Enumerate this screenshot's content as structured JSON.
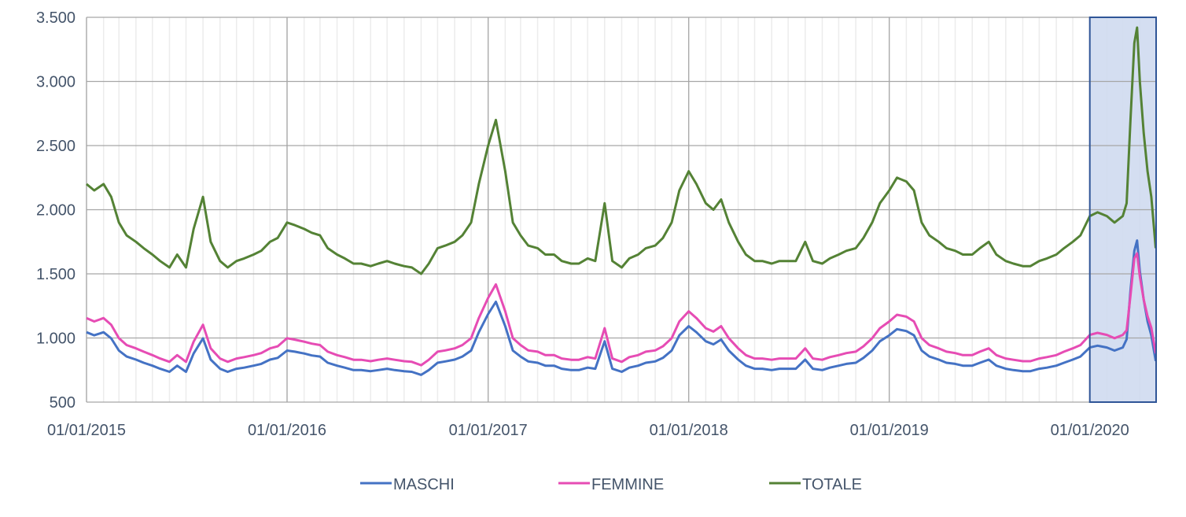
{
  "chart_data": {
    "type": "line",
    "title": "",
    "xlabel": "",
    "ylabel": "",
    "ylim": [
      500,
      3500
    ],
    "y_ticks": [
      "500",
      "1.000",
      "1.500",
      "2.000",
      "2.500",
      "3.000",
      "3.500"
    ],
    "y_tick_values": [
      500,
      1000,
      1500,
      2000,
      2500,
      3000,
      3500
    ],
    "xlim": [
      "2015-01-01",
      "2020-04-30"
    ],
    "x_ticks": [
      "01/01/2015",
      "01/01/2016",
      "01/01/2017",
      "01/01/2018",
      "01/01/2019",
      "01/01/2020"
    ],
    "x_tick_dates": [
      "2015-01-01",
      "2016-01-01",
      "2017-01-01",
      "2018-01-01",
      "2019-01-01",
      "2020-01-01"
    ],
    "grid": true,
    "minor_grid": "monthly",
    "legend_position": "bottom",
    "highlight_range": [
      "2020-01-01",
      "2020-04-30"
    ],
    "colors": {
      "MASCHI": "#4472C4",
      "FEMMINE": "#E64CB4",
      "TOTALE": "#548235",
      "highlight_fill": "#CFDAEF",
      "highlight_border": "#2F5597"
    },
    "x": [
      "2015-01-01",
      "2015-01-15",
      "2015-02-01",
      "2015-02-15",
      "2015-03-01",
      "2015-03-15",
      "2015-04-01",
      "2015-04-15",
      "2015-05-01",
      "2015-05-15",
      "2015-06-01",
      "2015-06-15",
      "2015-07-01",
      "2015-07-15",
      "2015-08-01",
      "2015-08-15",
      "2015-09-01",
      "2015-09-15",
      "2015-10-01",
      "2015-10-15",
      "2015-11-01",
      "2015-11-15",
      "2015-12-01",
      "2015-12-15",
      "2016-01-01",
      "2016-01-15",
      "2016-02-01",
      "2016-02-15",
      "2016-03-01",
      "2016-03-15",
      "2016-04-01",
      "2016-04-15",
      "2016-05-01",
      "2016-05-15",
      "2016-06-01",
      "2016-06-15",
      "2016-07-01",
      "2016-07-15",
      "2016-08-01",
      "2016-08-15",
      "2016-09-01",
      "2016-09-15",
      "2016-10-01",
      "2016-10-15",
      "2016-11-01",
      "2016-11-15",
      "2016-12-01",
      "2016-12-15",
      "2017-01-01",
      "2017-01-15",
      "2017-02-01",
      "2017-02-15",
      "2017-03-01",
      "2017-03-15",
      "2017-04-01",
      "2017-04-15",
      "2017-05-01",
      "2017-05-15",
      "2017-06-01",
      "2017-06-15",
      "2017-07-01",
      "2017-07-15",
      "2017-08-01",
      "2017-08-15",
      "2017-09-01",
      "2017-09-15",
      "2017-10-01",
      "2017-10-15",
      "2017-11-01",
      "2017-11-15",
      "2017-12-01",
      "2017-12-15",
      "2018-01-01",
      "2018-01-15",
      "2018-02-01",
      "2018-02-15",
      "2018-03-01",
      "2018-03-15",
      "2018-04-01",
      "2018-04-15",
      "2018-05-01",
      "2018-05-15",
      "2018-06-01",
      "2018-06-15",
      "2018-07-01",
      "2018-07-15",
      "2018-08-01",
      "2018-08-15",
      "2018-09-01",
      "2018-09-15",
      "2018-10-01",
      "2018-10-15",
      "2018-11-01",
      "2018-11-15",
      "2018-12-01",
      "2018-12-15",
      "2019-01-01",
      "2019-01-15",
      "2019-02-01",
      "2019-02-15",
      "2019-03-01",
      "2019-03-15",
      "2019-04-01",
      "2019-04-15",
      "2019-05-01",
      "2019-05-15",
      "2019-06-01",
      "2019-06-15",
      "2019-07-01",
      "2019-07-15",
      "2019-08-01",
      "2019-08-15",
      "2019-09-01",
      "2019-09-15",
      "2019-10-01",
      "2019-10-15",
      "2019-11-01",
      "2019-11-15",
      "2019-12-01",
      "2019-12-15",
      "2020-01-01",
      "2020-01-15",
      "2020-02-01",
      "2020-02-15",
      "2020-03-01",
      "2020-03-08",
      "2020-03-15",
      "2020-03-22",
      "2020-03-27",
      "2020-04-01",
      "2020-04-08",
      "2020-04-15",
      "2020-04-22",
      "2020-04-30"
    ],
    "series": [
      {
        "name": "MASCHI",
        "values": [
          1045,
          1021,
          1045,
          997,
          902,
          855,
          831,
          807,
          784,
          760,
          736,
          784,
          736,
          879,
          997,
          831,
          760,
          736,
          760,
          769,
          784,
          798,
          831,
          845,
          902,
          893,
          879,
          864,
          855,
          807,
          784,
          769,
          750,
          750,
          741,
          750,
          760,
          750,
          741,
          736,
          712,
          750,
          807,
          817,
          831,
          855,
          902,
          1045,
          1187,
          1282,
          1092,
          902,
          855,
          817,
          807,
          784,
          784,
          760,
          750,
          750,
          769,
          760,
          974,
          760,
          736,
          769,
          784,
          807,
          817,
          845,
          902,
          1021,
          1092,
          1045,
          974,
          950,
          988,
          902,
          831,
          784,
          760,
          760,
          750,
          760,
          760,
          760,
          831,
          760,
          750,
          769,
          784,
          798,
          807,
          845,
          902,
          974,
          1021,
          1069,
          1054,
          1021,
          902,
          855,
          831,
          807,
          798,
          784,
          784,
          807,
          831,
          784,
          760,
          750,
          741,
          741,
          760,
          769,
          784,
          807,
          831,
          855,
          926,
          940,
          926,
          902,
          926,
          990,
          1370,
          1680,
          1760,
          1520,
          1300,
          1130,
          1020,
          820
        ]
      },
      {
        "name": "FEMMINE",
        "values": [
          1155,
          1129,
          1155,
          1103,
          998,
          945,
          919,
          893,
          866,
          840,
          814,
          866,
          814,
          971,
          1103,
          919,
          840,
          814,
          840,
          851,
          866,
          882,
          919,
          935,
          998,
          987,
          971,
          956,
          945,
          893,
          866,
          851,
          830,
          830,
          819,
          830,
          840,
          830,
          819,
          814,
          788,
          830,
          893,
          903,
          919,
          945,
          998,
          1155,
          1313,
          1418,
          1208,
          998,
          945,
          903,
          893,
          866,
          866,
          840,
          830,
          830,
          851,
          840,
          1076,
          840,
          814,
          851,
          866,
          893,
          903,
          935,
          998,
          1129,
          1208,
          1155,
          1076,
          1050,
          1092,
          998,
          919,
          866,
          840,
          840,
          830,
          840,
          840,
          840,
          919,
          840,
          830,
          851,
          866,
          882,
          893,
          935,
          998,
          1076,
          1129,
          1181,
          1166,
          1129,
          998,
          945,
          919,
          893,
          882,
          866,
          866,
          893,
          919,
          866,
          840,
          830,
          819,
          819,
          840,
          851,
          866,
          893,
          919,
          945,
          1024,
          1040,
          1024,
          998,
          1024,
          1060,
          1330,
          1620,
          1660,
          1480,
          1300,
          1170,
          1080,
          880
        ]
      },
      {
        "name": "TOTALE",
        "values": [
          2200,
          2150,
          2200,
          2100,
          1900,
          1800,
          1750,
          1700,
          1650,
          1600,
          1550,
          1650,
          1550,
          1850,
          2100,
          1750,
          1600,
          1550,
          1600,
          1620,
          1650,
          1680,
          1750,
          1780,
          1900,
          1880,
          1850,
          1820,
          1800,
          1700,
          1650,
          1620,
          1580,
          1580,
          1560,
          1580,
          1600,
          1580,
          1560,
          1550,
          1500,
          1580,
          1700,
          1720,
          1750,
          1800,
          1900,
          2200,
          2500,
          2700,
          2300,
          1900,
          1800,
          1720,
          1700,
          1650,
          1650,
          1600,
          1580,
          1580,
          1620,
          1600,
          2050,
          1600,
          1550,
          1620,
          1650,
          1700,
          1720,
          1780,
          1900,
          2150,
          2300,
          2200,
          2050,
          2000,
          2080,
          1900,
          1750,
          1650,
          1600,
          1600,
          1580,
          1600,
          1600,
          1600,
          1750,
          1600,
          1580,
          1620,
          1650,
          1680,
          1700,
          1780,
          1900,
          2050,
          2150,
          2250,
          2220,
          2150,
          1900,
          1800,
          1750,
          1700,
          1680,
          1650,
          1650,
          1700,
          1750,
          1650,
          1600,
          1580,
          1560,
          1560,
          1600,
          1620,
          1650,
          1700,
          1750,
          1800,
          1950,
          1980,
          1950,
          1900,
          1950,
          2050,
          2700,
          3300,
          3420,
          3000,
          2600,
          2300,
          2100,
          1700
        ]
      }
    ]
  }
}
